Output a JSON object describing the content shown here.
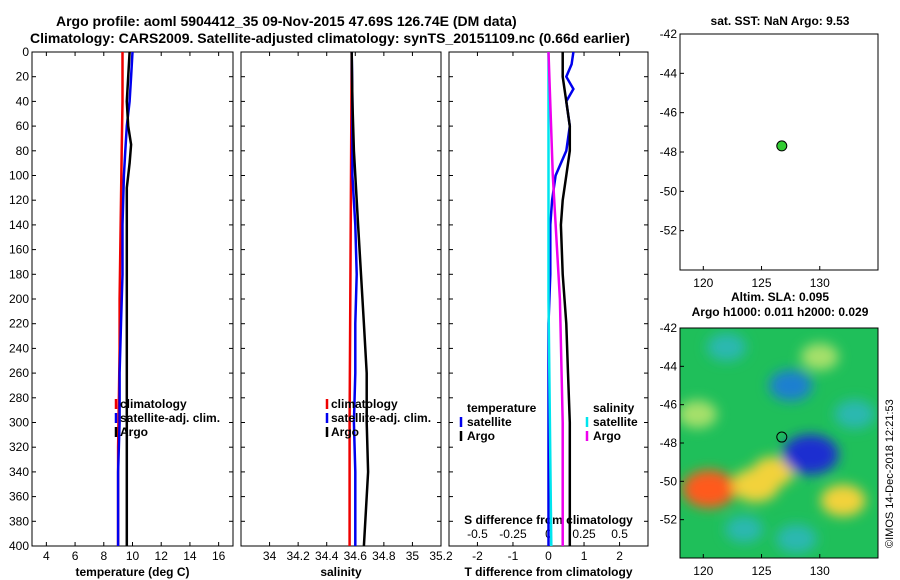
{
  "header": {
    "line1": "Argo profile: aoml 5904412_35 09-Nov-2015 47.69S 126.74E (DM data)",
    "line2": "Climatology: CARS2009. Satellite-adjusted climatology: synTS_20151109.nc (0.66d earlier)"
  },
  "colors": {
    "clim": "#ee0000",
    "sat": "#0000ee",
    "argo": "#000000",
    "cyan": "#00e5ee",
    "magenta": "#ee00ee"
  },
  "chart_data": [
    {
      "type": "line",
      "name": "temperature",
      "xlabel": "temperature (deg C)",
      "ylabel": "",
      "xlim": [
        3,
        17
      ],
      "ylim": [
        400,
        0
      ],
      "xticks": [
        4,
        6,
        8,
        10,
        12,
        14,
        16
      ],
      "yticks": [
        0,
        20,
        40,
        60,
        80,
        100,
        120,
        140,
        160,
        180,
        200,
        220,
        240,
        260,
        280,
        300,
        320,
        340,
        360,
        380,
        400
      ],
      "legend": [
        "climatology",
        "satellite-adj. clim.",
        "Argo"
      ],
      "series": [
        {
          "name": "climatology",
          "color": "clim",
          "depth": [
            0,
            40,
            80,
            120,
            160,
            200,
            240,
            280,
            320,
            360,
            400
          ],
          "x": [
            9.3,
            9.3,
            9.25,
            9.2,
            9.15,
            9.1,
            9.1,
            9.05,
            9.0,
            9.0,
            9.0
          ]
        },
        {
          "name": "satellite-adj. clim.",
          "color": "sat",
          "depth": [
            0,
            20,
            40,
            60,
            80,
            100,
            140,
            180,
            220,
            260,
            300,
            340,
            400
          ],
          "x": [
            10.0,
            9.9,
            9.8,
            9.6,
            9.5,
            9.4,
            9.3,
            9.3,
            9.2,
            9.1,
            9.1,
            9.0,
            9.0
          ]
        },
        {
          "name": "Argo",
          "color": "argo",
          "depth": [
            0,
            20,
            40,
            60,
            75,
            90,
            110,
            140,
            180,
            220,
            260,
            300,
            340,
            380,
            400
          ],
          "x": [
            9.8,
            9.7,
            9.6,
            9.7,
            9.9,
            9.8,
            9.6,
            9.6,
            9.6,
            9.6,
            9.6,
            9.6,
            9.6,
            9.6,
            9.6
          ]
        }
      ]
    },
    {
      "type": "line",
      "name": "salinity",
      "xlabel": "salinity",
      "ylabel": "",
      "xlim": [
        33.8,
        35.2
      ],
      "ylim": [
        400,
        0
      ],
      "xticks": [
        34,
        34.2,
        34.4,
        34.6,
        34.8,
        35,
        35.2
      ],
      "legend": [
        "climatology",
        "satellite-adj. clim.",
        "Argo"
      ],
      "series": [
        {
          "name": "climatology",
          "color": "clim",
          "depth": [
            0,
            100,
            200,
            300,
            400
          ],
          "x": [
            34.575,
            34.57,
            34.565,
            34.56,
            34.56
          ]
        },
        {
          "name": "satellite-adj. clim.",
          "color": "sat",
          "depth": [
            0,
            40,
            80,
            100,
            140,
            180,
            220,
            260,
            300,
            340,
            380,
            400
          ],
          "x": [
            34.575,
            34.58,
            34.58,
            34.58,
            34.6,
            34.61,
            34.6,
            34.6,
            34.59,
            34.6,
            34.6,
            34.6
          ]
        },
        {
          "name": "Argo",
          "color": "argo",
          "depth": [
            0,
            40,
            80,
            100,
            140,
            180,
            220,
            260,
            300,
            340,
            380,
            400
          ],
          "x": [
            34.575,
            34.58,
            34.59,
            34.6,
            34.62,
            34.64,
            34.66,
            34.68,
            34.68,
            34.69,
            34.67,
            34.66
          ]
        }
      ]
    },
    {
      "type": "line",
      "name": "difference",
      "xlabel": "T difference from climatology",
      "xlabel_top": "S difference from climatology",
      "xlim": [
        -2.8,
        2.8
      ],
      "ylim": [
        400,
        0
      ],
      "xticks": [
        -2,
        -1,
        0,
        1,
        2
      ],
      "xticks_top": [
        -0.5,
        -0.25,
        0,
        0.25,
        0.5
      ],
      "legend_left_title": "temperature",
      "legend_left": [
        "satellite",
        "Argo"
      ],
      "legend_right_title": "salinity",
      "legend_right": [
        "satellite",
        "Argo"
      ],
      "series": [
        {
          "name": "T satellite",
          "color": "sat",
          "depth": [
            0,
            10,
            20,
            30,
            40,
            60,
            80,
            100,
            120,
            140,
            180,
            220,
            260,
            300,
            340,
            400
          ],
          "T": [
            0.7,
            0.65,
            0.5,
            0.7,
            0.5,
            0.6,
            0.5,
            0.2,
            0.1,
            0.05,
            0.05,
            0.0,
            0.0,
            0.0,
            0.0,
            0.0
          ]
        },
        {
          "name": "T Argo",
          "color": "argo",
          "depth": [
            0,
            20,
            40,
            60,
            80,
            100,
            120,
            140,
            180,
            220,
            260,
            300,
            340,
            380,
            400
          ],
          "T": [
            0.4,
            0.4,
            0.5,
            0.6,
            0.6,
            0.5,
            0.4,
            0.35,
            0.4,
            0.5,
            0.55,
            0.6,
            0.6,
            0.6,
            0.6
          ]
        },
        {
          "name": "S satellite",
          "color": "cyan",
          "depth": [
            0,
            200,
            400
          ],
          "S": [
            0.0,
            0.0,
            0.02
          ]
        },
        {
          "name": "S Argo",
          "color": "magenta",
          "depth": [
            0,
            100,
            200,
            300,
            400
          ],
          "S": [
            0.0,
            0.03,
            0.08,
            0.1,
            0.1
          ]
        }
      ]
    },
    {
      "type": "scatter",
      "name": "sst-map",
      "title": "sat. SST: NaN Argo: 9.53",
      "xlim": [
        118,
        135
      ],
      "ylim": [
        -54,
        -42
      ],
      "xticks": [
        120,
        125,
        130
      ],
      "yticks": [
        -42,
        -44,
        -46,
        -48,
        -50,
        -52
      ],
      "point": {
        "lon": 126.74,
        "lat": -47.69
      }
    },
    {
      "type": "heatmap",
      "name": "sla-map",
      "title1": "Altim. SLA: 0.095",
      "title2": "Argo h1000: 0.011 h2000: 0.029",
      "xlim": [
        118,
        135
      ],
      "ylim": [
        -54,
        -42
      ],
      "xticks": [
        120,
        125,
        130
      ],
      "yticks": [
        -42,
        -44,
        -46,
        -48,
        -50,
        -52
      ],
      "point": {
        "lon": 126.74,
        "lat": -47.69
      },
      "blobs": [
        {
          "lon": 120.5,
          "lat": -50.4,
          "v": 0.9
        },
        {
          "lon": 124.5,
          "lat": -50.2,
          "v": 0.7
        },
        {
          "lon": 119.5,
          "lat": -46.5,
          "v": 0.4
        },
        {
          "lon": 126.0,
          "lat": -49.5,
          "v": 0.5
        },
        {
          "lon": 132.0,
          "lat": -51.0,
          "v": 0.6
        },
        {
          "lon": 130.0,
          "lat": -43.5,
          "v": 0.35
        },
        {
          "lon": 129.2,
          "lat": -48.6,
          "v": -1.0
        },
        {
          "lon": 127.5,
          "lat": -45.0,
          "v": -0.55
        },
        {
          "lon": 122.0,
          "lat": -43.0,
          "v": -0.4
        },
        {
          "lon": 133.0,
          "lat": -46.5,
          "v": -0.45
        },
        {
          "lon": 123.5,
          "lat": -52.5,
          "v": -0.35
        },
        {
          "lon": 128.0,
          "lat": -53.0,
          "v": -0.45
        }
      ]
    }
  ],
  "stamp": "©IMOS 14-Dec-2018 12:21:53"
}
